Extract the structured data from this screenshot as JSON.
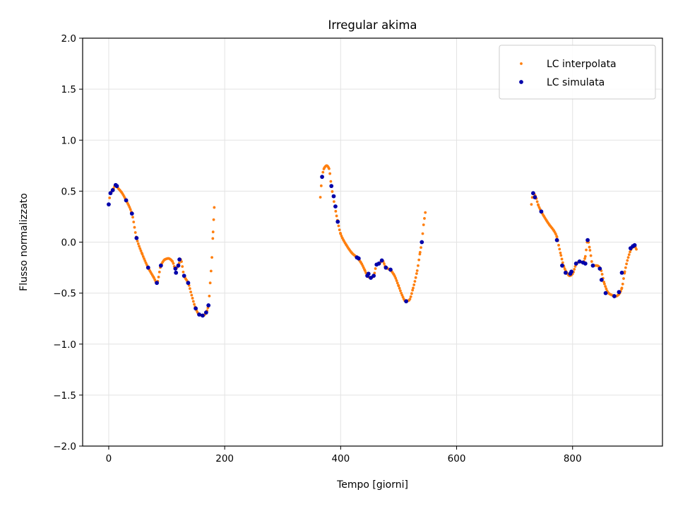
{
  "chart_data": {
    "type": "scatter",
    "title": "Irregular akima",
    "xlabel": "Tempo [giorni]",
    "ylabel": "Flusso normalizzato",
    "xlim": [
      -45,
      955
    ],
    "ylim": [
      -2.0,
      2.0
    ],
    "xticks": [
      0,
      200,
      400,
      600,
      800
    ],
    "yticks": [
      -2.0,
      -1.5,
      -1.0,
      -0.5,
      0.0,
      0.5,
      1.0,
      1.5,
      2.0
    ],
    "xtick_labels": [
      "0",
      "200",
      "400",
      "600",
      "800"
    ],
    "ytick_labels": [
      "−2.0",
      "−1.5",
      "−1.0",
      "−0.5",
      "0.0",
      "0.5",
      "1.0",
      "1.5",
      "2.0"
    ],
    "grid": true,
    "legend_position": "top-right",
    "series": [
      {
        "name": "LC interpolata",
        "color": "#ff7f0e",
        "marker_size": "small",
        "knots": [
          [
            [
              0,
              0.37
            ],
            [
              3,
              0.48
            ],
            [
              7,
              0.51
            ],
            [
              12,
              0.56
            ],
            [
              16,
              0.53
            ],
            [
              22,
              0.49
            ],
            [
              30,
              0.41
            ],
            [
              40,
              0.28
            ],
            [
              48,
              0.04
            ],
            [
              58,
              -0.12
            ],
            [
              68,
              -0.25
            ],
            [
              78,
              -0.35
            ],
            [
              83,
              -0.4
            ],
            [
              90,
              -0.23
            ],
            [
              97,
              -0.17
            ],
            [
              103,
              -0.16
            ],
            [
              110,
              -0.19
            ],
            [
              115,
              -0.26
            ],
            [
              120,
              -0.23
            ],
            [
              124,
              -0.17
            ],
            [
              130,
              -0.33
            ],
            [
              137,
              -0.4
            ],
            [
              143,
              -0.52
            ],
            [
              150,
              -0.65
            ],
            [
              156,
              -0.71
            ],
            [
              163,
              -0.72
            ],
            [
              168,
              -0.69
            ],
            [
              172,
              -0.62
            ],
            [
              175,
              -0.4
            ],
            [
              178,
              -0.15
            ],
            [
              180,
              0.1
            ],
            [
              181,
              0.22
            ],
            [
              182,
              0.34
            ]
          ],
          [
            [
              365,
              0.44
            ],
            [
              368,
              0.64
            ],
            [
              372,
              0.73
            ],
            [
              376,
              0.75
            ],
            [
              380,
              0.72
            ],
            [
              384,
              0.55
            ],
            [
              390,
              0.35
            ],
            [
              395,
              0.2
            ],
            [
              400,
              0.08
            ],
            [
              410,
              -0.03
            ],
            [
              420,
              -0.11
            ],
            [
              428,
              -0.15
            ],
            [
              435,
              -0.2
            ],
            [
              442,
              -0.28
            ],
            [
              446,
              -0.33
            ],
            [
              452,
              -0.35
            ],
            [
              457,
              -0.33
            ],
            [
              462,
              -0.22
            ],
            [
              468,
              -0.2
            ],
            [
              472,
              -0.18
            ],
            [
              478,
              -0.25
            ],
            [
              485,
              -0.27
            ],
            [
              492,
              -0.32
            ],
            [
              500,
              -0.43
            ],
            [
              506,
              -0.52
            ],
            [
              512,
              -0.58
            ],
            [
              518,
              -0.57
            ],
            [
              525,
              -0.45
            ],
            [
              532,
              -0.28
            ],
            [
              537,
              -0.1
            ],
            [
              540,
              0.0
            ],
            [
              543,
              0.17
            ],
            [
              546,
              0.29
            ]
          ],
          [
            [
              729,
              0.37
            ],
            [
              732,
              0.48
            ],
            [
              736,
              0.45
            ],
            [
              741,
              0.36
            ],
            [
              746,
              0.3
            ],
            [
              752,
              0.24
            ],
            [
              760,
              0.17
            ],
            [
              768,
              0.11
            ],
            [
              773,
              0.05
            ],
            [
              776,
              -0.03
            ],
            [
              780,
              -0.13
            ],
            [
              785,
              -0.24
            ],
            [
              790,
              -0.3
            ],
            [
              795,
              -0.33
            ],
            [
              800,
              -0.31
            ],
            [
              806,
              -0.22
            ],
            [
              812,
              -0.19
            ],
            [
              818,
              -0.2
            ],
            [
              822,
              -0.14
            ],
            [
              826,
              0.02
            ],
            [
              830,
              -0.08
            ],
            [
              835,
              -0.23
            ],
            [
              842,
              -0.23
            ],
            [
              848,
              -0.26
            ],
            [
              855,
              -0.41
            ],
            [
              862,
              -0.5
            ],
            [
              868,
              -0.52
            ],
            [
              875,
              -0.53
            ],
            [
              880,
              -0.51
            ],
            [
              885,
              -0.45
            ],
            [
              890,
              -0.29
            ],
            [
              896,
              -0.15
            ],
            [
              902,
              -0.06
            ],
            [
              907,
              -0.04
            ],
            [
              910,
              -0.07
            ]
          ]
        ]
      },
      {
        "name": "LC simulata",
        "color": "#0000aa",
        "marker_size": "medium",
        "points": [
          [
            0,
            0.37
          ],
          [
            3,
            0.48
          ],
          [
            7,
            0.51
          ],
          [
            12,
            0.56
          ],
          [
            14,
            0.55
          ],
          [
            30,
            0.41
          ],
          [
            40,
            0.28
          ],
          [
            48,
            0.04
          ],
          [
            68,
            -0.25
          ],
          [
            83,
            -0.4
          ],
          [
            90,
            -0.23
          ],
          [
            115,
            -0.26
          ],
          [
            116,
            -0.3
          ],
          [
            120,
            -0.23
          ],
          [
            122,
            -0.17
          ],
          [
            130,
            -0.33
          ],
          [
            137,
            -0.4
          ],
          [
            150,
            -0.65
          ],
          [
            156,
            -0.71
          ],
          [
            162,
            -0.72
          ],
          [
            168,
            -0.69
          ],
          [
            172,
            -0.62
          ],
          [
            368,
            0.64
          ],
          [
            384,
            0.55
          ],
          [
            388,
            0.45
          ],
          [
            391,
            0.35
          ],
          [
            395,
            0.2
          ],
          [
            428,
            -0.15
          ],
          [
            431,
            -0.16
          ],
          [
            446,
            -0.33
          ],
          [
            448,
            -0.31
          ],
          [
            452,
            -0.35
          ],
          [
            457,
            -0.33
          ],
          [
            462,
            -0.22
          ],
          [
            466,
            -0.21
          ],
          [
            471,
            -0.18
          ],
          [
            478,
            -0.25
          ],
          [
            486,
            -0.27
          ],
          [
            513,
            -0.58
          ],
          [
            540,
            0.0
          ],
          [
            732,
            0.48
          ],
          [
            735,
            0.44
          ],
          [
            746,
            0.3
          ],
          [
            773,
            0.02
          ],
          [
            782,
            -0.23
          ],
          [
            788,
            -0.3
          ],
          [
            796,
            -0.31
          ],
          [
            798,
            -0.29
          ],
          [
            806,
            -0.21
          ],
          [
            812,
            -0.19
          ],
          [
            818,
            -0.2
          ],
          [
            822,
            -0.21
          ],
          [
            826,
            0.02
          ],
          [
            835,
            -0.23
          ],
          [
            847,
            -0.26
          ],
          [
            850,
            -0.37
          ],
          [
            857,
            -0.5
          ],
          [
            872,
            -0.53
          ],
          [
            880,
            -0.49
          ],
          [
            885,
            -0.3
          ],
          [
            900,
            -0.06
          ],
          [
            904,
            -0.04
          ],
          [
            907,
            -0.03
          ]
        ]
      }
    ]
  }
}
